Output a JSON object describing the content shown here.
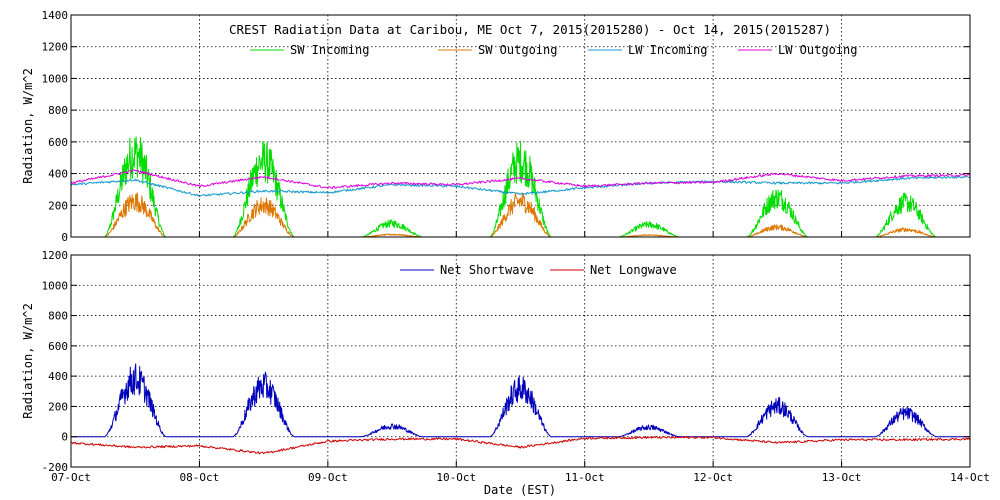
{
  "chart_data": [
    {
      "type": "line",
      "title": "CREST Radiation Data at Caribou, ME   Oct  7, 2015(2015280) - Oct 14, 2015(2015287)",
      "ylabel": "Radiation, W/m^2",
      "xlabel": "",
      "xlim": [
        "2015-10-07",
        "2015-10-14"
      ],
      "ylim": [
        0,
        1400
      ],
      "yticks": [
        0,
        200,
        400,
        600,
        800,
        1000,
        1200,
        1400
      ],
      "grid": true,
      "legend_position": "top",
      "series": [
        {
          "name": "SW Incoming",
          "color": "#00dd00",
          "daily_peak": [
            680,
            620,
            110,
            620,
            100,
            320,
            280
          ]
        },
        {
          "name": "SW Outgoing",
          "color": "#dd7700",
          "daily_peak": [
            290,
            260,
            20,
            290,
            15,
            80,
            60
          ]
        },
        {
          "name": "LW Incoming",
          "color": "#1199cc",
          "x": [
            "2015-10-07 00:00",
            "2015-10-07 12:00",
            "2015-10-08 00:00",
            "2015-10-08 12:00",
            "2015-10-09 00:00",
            "2015-10-09 12:00",
            "2015-10-10 00:00",
            "2015-10-10 12:00",
            "2015-10-11 00:00",
            "2015-10-11 12:00",
            "2015-10-12 00:00",
            "2015-10-12 12:00",
            "2015-10-13 00:00",
            "2015-10-13 12:00",
            "2015-10-14 00:00"
          ],
          "values": [
            330,
            360,
            260,
            290,
            280,
            330,
            320,
            270,
            310,
            340,
            350,
            340,
            340,
            370,
            380
          ]
        },
        {
          "name": "LW Outgoing",
          "color": "#dd00dd",
          "x": [
            "2015-10-07 00:00",
            "2015-10-07 12:00",
            "2015-10-08 00:00",
            "2015-10-08 12:00",
            "2015-10-09 00:00",
            "2015-10-09 12:00",
            "2015-10-10 00:00",
            "2015-10-10 12:00",
            "2015-10-11 00:00",
            "2015-10-11 12:00",
            "2015-10-12 00:00",
            "2015-10-12 12:00",
            "2015-10-13 00:00",
            "2015-10-13 12:00",
            "2015-10-14 00:00"
          ],
          "values": [
            340,
            420,
            320,
            380,
            310,
            340,
            330,
            370,
            320,
            340,
            345,
            400,
            355,
            385,
            390
          ]
        }
      ]
    },
    {
      "type": "line",
      "title": "",
      "ylabel": "Radiation, W/m^2",
      "xlabel": "Date (EST)",
      "xlim": [
        "2015-10-07",
        "2015-10-14"
      ],
      "ylim": [
        -200,
        1200
      ],
      "yticks": [
        -200,
        0,
        200,
        400,
        600,
        800,
        1000,
        1200
      ],
      "xtick_labels": [
        "07-Oct",
        "08-Oct",
        "09-Oct",
        "10-Oct",
        "11-Oct",
        "12-Oct",
        "13-Oct",
        "14-Oct"
      ],
      "grid": true,
      "legend_position": "top",
      "series": [
        {
          "name": "Net Shortwave",
          "color": "#0000bb",
          "daily_peak": [
            490,
            430,
            90,
            410,
            80,
            260,
            200
          ]
        },
        {
          "name": "Net Longwave",
          "color": "#cc0000",
          "x": [
            "2015-10-07 00:00",
            "2015-10-07 12:00",
            "2015-10-08 00:00",
            "2015-10-08 12:00",
            "2015-10-09 00:00",
            "2015-10-09 12:00",
            "2015-10-10 00:00",
            "2015-10-10 12:00",
            "2015-10-11 00:00",
            "2015-10-11 12:00",
            "2015-10-12 00:00",
            "2015-10-12 12:00",
            "2015-10-13 00:00",
            "2015-10-13 12:00",
            "2015-10-14 00:00"
          ],
          "values": [
            -40,
            -70,
            -60,
            -110,
            -30,
            -15,
            -15,
            -70,
            -10,
            -5,
            -5,
            -40,
            -20,
            -20,
            -15
          ]
        }
      ]
    }
  ]
}
